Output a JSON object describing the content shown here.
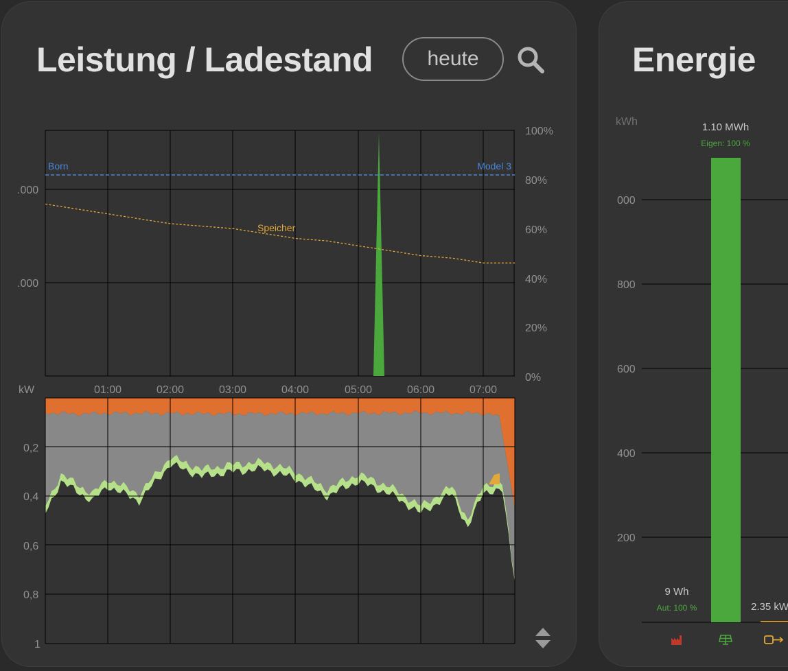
{
  "left_panel": {
    "title": "Leistung / Ladestand",
    "range_button": "heute",
    "search_icon": "search-icon",
    "toggle_icon": "sort-updown-icon"
  },
  "soc_chart": {
    "right_ticks": [
      "100%",
      "80%",
      "60%",
      "40%",
      "20%",
      "0%"
    ],
    "left_ticks": [
      ".000",
      ".000"
    ],
    "x_ticks": [
      "01:00",
      "02:00",
      "03:00",
      "04:00",
      "05:00",
      "06:00",
      "07:00"
    ],
    "labels": {
      "born": "Born",
      "model3": "Model 3",
      "speicher": "Speicher"
    }
  },
  "power_chart": {
    "unit": "kW",
    "y_ticks": [
      "0,2",
      "0,4",
      "0,6",
      "0,8",
      "1"
    ]
  },
  "chart_data": [
    {
      "type": "line",
      "y2label": "",
      "y2lim": [
        0,
        100
      ],
      "x_range": [
        "00:00",
        "07:30"
      ],
      "series": [
        {
          "name": "Born",
          "values": [
            [
              0,
              82
            ],
            [
              7.5,
              82
            ]
          ]
        },
        {
          "name": "Model 3",
          "values": [
            [
              0,
              82
            ],
            [
              7.5,
              82
            ]
          ]
        },
        {
          "name": "Speicher",
          "values": [
            [
              0,
              70
            ],
            [
              0.5,
              68
            ],
            [
              1,
              66
            ],
            [
              1.5,
              64
            ],
            [
              2,
              62
            ],
            [
              2.5,
              61
            ],
            [
              3,
              60
            ],
            [
              3.5,
              58
            ],
            [
              4,
              56
            ],
            [
              4.5,
              55
            ],
            [
              5,
              53
            ],
            [
              5.5,
              51
            ],
            [
              6,
              49
            ],
            [
              6.5,
              48
            ],
            [
              7,
              46
            ],
            [
              7.5,
              46
            ]
          ]
        },
        {
          "name": "",
          "values": [
            [
              5.2,
              0
            ],
            [
              5.35,
              100
            ],
            [
              5.45,
              0
            ]
          ]
        }
      ],
      "colors": {
        "born": "#4a86d4",
        "model3": "#4a86d4",
        "speicher": "#e3a83a",
        "spike": "#4aa83c"
      },
      "grid": true
    },
    {
      "type": "area",
      "ylabel": "kW",
      "ylim": [
        0,
        1
      ],
      "y_inverted": true,
      "x_range": [
        "00:00",
        "07:30"
      ],
      "series": [
        {
          "name": "",
          "color": "#e07030",
          "values": [
            [
              0,
              0.06
            ],
            [
              0.5,
              0.065
            ],
            [
              1,
              0.062
            ],
            [
              2,
              0.063
            ],
            [
              3,
              0.065
            ],
            [
              4,
              0.063
            ],
            [
              5,
              0.062
            ],
            [
              6,
              0.06
            ],
            [
              7,
              0.063
            ],
            [
              7.25,
              0.07
            ],
            [
              7.5,
              0.45
            ]
          ]
        },
        {
          "name": "",
          "color": "#888888",
          "values": [
            [
              0,
              0.44
            ],
            [
              0.25,
              0.31
            ],
            [
              0.75,
              0.39
            ],
            [
              1,
              0.33
            ],
            [
              1.5,
              0.39
            ],
            [
              2,
              0.24
            ],
            [
              2.5,
              0.29
            ],
            [
              3,
              0.27
            ],
            [
              3.5,
              0.26
            ],
            [
              4,
              0.3
            ],
            [
              4.5,
              0.37
            ],
            [
              5,
              0.31
            ],
            [
              5.5,
              0.36
            ],
            [
              6,
              0.44
            ],
            [
              6.5,
              0.36
            ],
            [
              6.75,
              0.5
            ],
            [
              7,
              0.35
            ],
            [
              7.3,
              0.35
            ],
            [
              7.5,
              0.73
            ]
          ]
        },
        {
          "name": "",
          "color": "#b6e08a",
          "values": [
            [
              0,
              0.47
            ],
            [
              0.25,
              0.34
            ],
            [
              0.75,
              0.42
            ],
            [
              1,
              0.36
            ],
            [
              1.5,
              0.42
            ],
            [
              2,
              0.27
            ],
            [
              2.5,
              0.32
            ],
            [
              3,
              0.3
            ],
            [
              3.5,
              0.29
            ],
            [
              4,
              0.33
            ],
            [
              4.5,
              0.4
            ],
            [
              5,
              0.34
            ],
            [
              5.5,
              0.39
            ],
            [
              6,
              0.47
            ],
            [
              6.5,
              0.39
            ],
            [
              6.75,
              0.53
            ],
            [
              7,
              0.38
            ],
            [
              7.3,
              0.38
            ],
            [
              7.5,
              0.74
            ]
          ]
        }
      ],
      "grid": true
    },
    {
      "type": "bar",
      "ylabel": "kWh",
      "ylim": [
        0,
        1100
      ],
      "categories": [
        "grid-icon",
        "solar-icon",
        "wallbox-icon"
      ],
      "values": [
        0.009,
        1100,
        2.35
      ],
      "y_ticks": [
        "000",
        "800",
        "600",
        "400",
        "200"
      ],
      "bar_labels": [
        {
          "value": "9 Wh",
          "sub": "Aut: 100 %"
        },
        {
          "value": "1.10 MWh",
          "sub": "Eigen: 100 %"
        },
        {
          "value": "2.35 kW",
          "sub": ""
        }
      ],
      "colors": {
        "solar": "#4aa83c",
        "grid_icon": "#c0392b",
        "solar_icon": "#4aa83c",
        "wallbox_icon": "#e3a83a"
      },
      "grid": true
    }
  ],
  "right_panel": {
    "title": "Energie"
  }
}
